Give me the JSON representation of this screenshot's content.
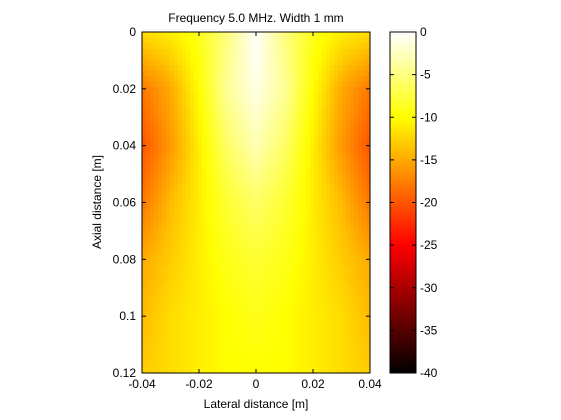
{
  "chart_data": {
    "type": "heatmap",
    "title": "Frequency 5.0 MHz. Width 1 mm",
    "xlabel": "Lateral distance [m]",
    "ylabel": "Axial distance [m]",
    "xlim": [
      -0.04,
      0.04
    ],
    "ylim": [
      0,
      0.12
    ],
    "y_direction": "reversed (0 at top)",
    "x_ticks": [
      "-0.04",
      "-0.02",
      "0",
      "0.02",
      "0.04"
    ],
    "y_ticks": [
      "0",
      "0.02",
      "0.04",
      "0.06",
      "0.08",
      "0.1",
      "0.12"
    ],
    "colorbar": {
      "range_db": [
        -40,
        0
      ],
      "ticks": [
        "0",
        "-5",
        "-10",
        "-15",
        "-20",
        "-25",
        "-30",
        "-35",
        "-40"
      ],
      "colormap": "hot",
      "colormap_stops": [
        "#000000",
        "#ff0000",
        "#ffff00",
        "#ffffff"
      ]
    },
    "field_samples_db": {
      "x": [
        -0.04,
        -0.03,
        -0.02,
        -0.01,
        0,
        0.01,
        0.02,
        0.03,
        0.04
      ],
      "z": [
        0,
        0.02,
        0.04,
        0.06,
        0.08,
        0.1,
        0.12
      ],
      "values": [
        [
          -12,
          -11,
          -9,
          -5,
          0,
          -5,
          -9,
          -11,
          -12
        ],
        [
          -18,
          -15,
          -10,
          -4,
          -1,
          -4,
          -10,
          -15,
          -18
        ],
        [
          -20,
          -16,
          -11,
          -6,
          -3,
          -6,
          -11,
          -16,
          -20
        ],
        [
          -18,
          -14,
          -11,
          -8,
          -6,
          -8,
          -11,
          -14,
          -18
        ],
        [
          -15,
          -13,
          -11,
          -9,
          -8,
          -9,
          -11,
          -13,
          -15
        ],
        [
          -14,
          -12,
          -11,
          -10,
          -9,
          -10,
          -11,
          -12,
          -14
        ],
        [
          -13,
          -12,
          -11,
          -10,
          -10,
          -10,
          -11,
          -12,
          -13
        ]
      ]
    }
  }
}
